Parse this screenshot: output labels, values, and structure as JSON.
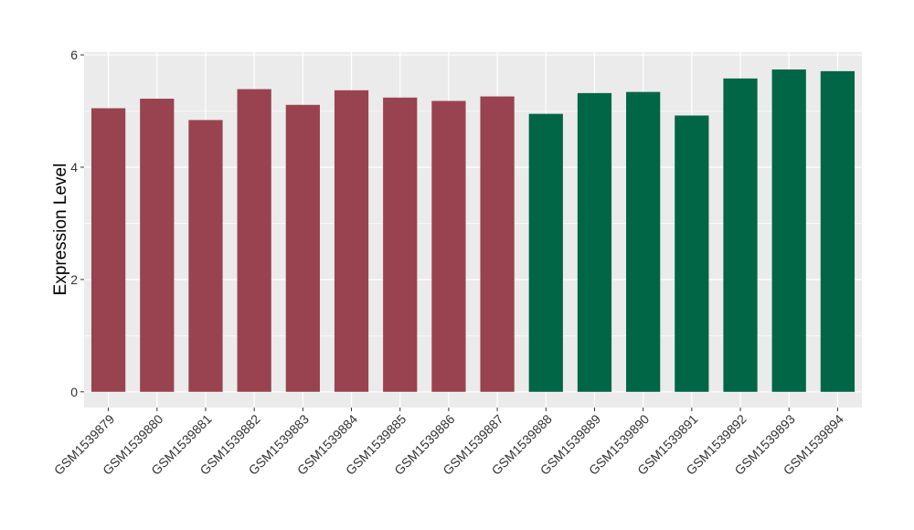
{
  "chart_data": {
    "type": "bar",
    "ylabel": "Expression Level",
    "xlabel": "",
    "ylim": [
      -0.28,
      6.05
    ],
    "yticks": [
      0,
      2,
      4,
      6
    ],
    "categories": [
      "GSM1539879",
      "GSM1539880",
      "GSM1539881",
      "GSM1539882",
      "GSM1539883",
      "GSM1539884",
      "GSM1539885",
      "GSM1539886",
      "GSM1539887",
      "GSM1539888",
      "GSM1539889",
      "GSM1539890",
      "GSM1539891",
      "GSM1539892",
      "GSM1539893",
      "GSM1539894"
    ],
    "values": [
      5.05,
      5.22,
      4.84,
      5.39,
      5.11,
      5.37,
      5.24,
      5.18,
      5.26,
      4.95,
      5.32,
      5.34,
      4.92,
      5.58,
      5.74,
      5.71
    ],
    "group": [
      0,
      0,
      0,
      0,
      0,
      0,
      0,
      0,
      0,
      1,
      1,
      1,
      1,
      1,
      1,
      1
    ],
    "group_colors": [
      "#994350",
      "#006645"
    ],
    "panel_background": "#ebebeb",
    "gridline_color": "#ffffff",
    "grid": true,
    "legend": "none"
  }
}
